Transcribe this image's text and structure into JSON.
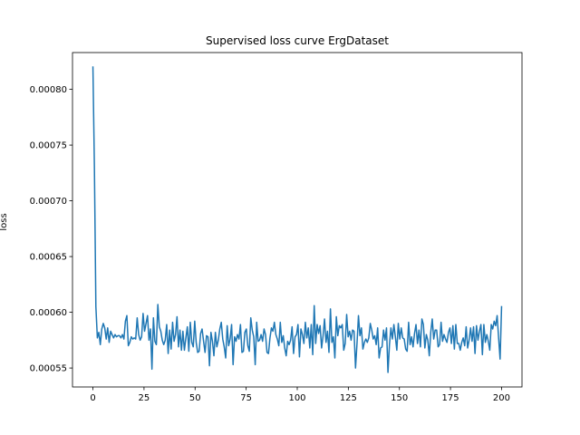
{
  "chart_data": {
    "type": "line",
    "title": "Supervised loss curve ErgDataset",
    "xlabel": "",
    "ylabel": "loss",
    "xlim": [
      -10,
      210
    ],
    "ylim": [
      0.000533,
      0.000833
    ],
    "xticks": [
      0,
      25,
      50,
      75,
      100,
      125,
      150,
      175,
      200
    ],
    "yticks": [
      0.00055,
      0.0006,
      0.00065,
      0.0007,
      0.00075,
      0.0008
    ],
    "ytick_labels": [
      "0.00055",
      "0.00060",
      "0.00065",
      "0.00070",
      "0.00075",
      "0.00080"
    ],
    "grid": false,
    "line_color": "#1f77b4",
    "series": [
      {
        "values": [
          0.00082,
          0.00073,
          0.000605,
          0.000577,
          0.000582,
          0.000571,
          0.000585,
          0.00059,
          0.000586,
          0.000576,
          0.000586,
          0.000573,
          0.000583,
          0.00058,
          0.000577,
          0.00058,
          0.000578,
          0.000579,
          0.000579,
          0.000577,
          0.00058,
          0.000576,
          0.000592,
          0.000597,
          0.00057,
          0.000573,
          0.000578,
          0.000576,
          0.000577,
          0.000576,
          0.000595,
          0.00058,
          0.000575,
          0.000578,
          0.000599,
          0.000583,
          0.00059,
          0.000597,
          0.000575,
          0.000585,
          0.000549,
          0.000595,
          0.000574,
          0.000571,
          0.000607,
          0.000587,
          0.000583,
          0.000575,
          0.000571,
          0.000575,
          0.000589,
          0.000563,
          0.000584,
          0.000567,
          0.000591,
          0.000574,
          0.00058,
          0.000596,
          0.000569,
          0.000584,
          0.000566,
          0.000583,
          0.000566,
          0.000577,
          0.000587,
          0.000565,
          0.000591,
          0.000573,
          0.000569,
          0.000592,
          0.000573,
          0.000564,
          0.000565,
          0.000581,
          0.000585,
          0.000574,
          0.000564,
          0.000579,
          0.000578,
          0.000552,
          0.000582,
          0.000574,
          0.000561,
          0.000582,
          0.000569,
          0.000575,
          0.000585,
          0.000591,
          0.000576,
          0.000569,
          0.000559,
          0.000588,
          0.00057,
          0.000576,
          0.000589,
          0.000553,
          0.000578,
          0.000574,
          0.00058,
          0.000576,
          0.000589,
          0.000564,
          0.000565,
          0.000582,
          0.000585,
          0.00057,
          0.000565,
          0.000595,
          0.000584,
          0.000578,
          0.000553,
          0.000591,
          0.000574,
          0.000575,
          0.00058,
          0.000574,
          0.000585,
          0.00058,
          0.000564,
          0.000563,
          0.000577,
          0.000586,
          0.000583,
          0.000591,
          0.00058,
          0.000576,
          0.00057,
          0.000591,
          0.000573,
          0.000579,
          0.000568,
          0.000561,
          0.000574,
          0.000571,
          0.000575,
          0.000587,
          0.000563,
          0.000578,
          0.00058,
          0.000589,
          0.00056,
          0.000585,
          0.00058,
          0.000572,
          0.000591,
          0.000577,
          0.000586,
          0.000568,
          0.000589,
          0.000562,
          0.000606,
          0.000572,
          0.000589,
          0.000581,
          0.000588,
          0.000568,
          0.000579,
          0.000594,
          0.000573,
          0.000583,
          0.000564,
          0.000603,
          0.000573,
          0.000578,
          0.000559,
          0.000596,
          0.000579,
          0.000588,
          0.000586,
          0.000589,
          0.000566,
          0.000572,
          0.000598,
          0.000578,
          0.000583,
          0.000575,
          0.000584,
          0.000583,
          0.00055,
          0.000572,
          0.000597,
          0.000579,
          0.000586,
          0.000567,
          0.000573,
          0.000576,
          0.000573,
          0.000577,
          0.00059,
          0.000584,
          0.000576,
          0.000579,
          0.000571,
          0.000586,
          0.000559,
          0.000568,
          0.000569,
          0.000584,
          0.000575,
          0.000586,
          0.000546,
          0.000571,
          0.000586,
          0.000576,
          0.000589,
          0.000578,
          0.000566,
          0.00059,
          0.000576,
          0.000586,
          0.000577,
          0.000576,
          0.000567,
          0.000565,
          0.000591,
          0.000571,
          0.000578,
          0.000569,
          0.000581,
          0.000589,
          0.000572,
          0.000584,
          0.000569,
          0.000594,
          0.000589,
          0.000568,
          0.00058,
          0.000575,
          0.000561,
          0.000582,
          0.000594,
          0.000576,
          0.000584,
          0.000584,
          0.000569,
          0.000571,
          0.000591,
          0.000574,
          0.00058,
          0.000576,
          0.000573,
          0.000582,
          0.000586,
          0.000572,
          0.000588,
          0.000567,
          0.000589,
          0.000572,
          0.000572,
          0.000566,
          0.000573,
          0.000577,
          0.00057,
          0.000587,
          0.000568,
          0.000575,
          0.000586,
          0.000574,
          0.000587,
          0.000563,
          0.000588,
          0.000575,
          0.000583,
          0.000589,
          0.000562,
          0.000589,
          0.000573,
          0.00058,
          0.000574,
          0.000566,
          0.000589,
          0.000585,
          0.000592,
          0.000588,
          0.000597,
          0.000577,
          0.000558,
          0.000605
        ]
      }
    ]
  }
}
